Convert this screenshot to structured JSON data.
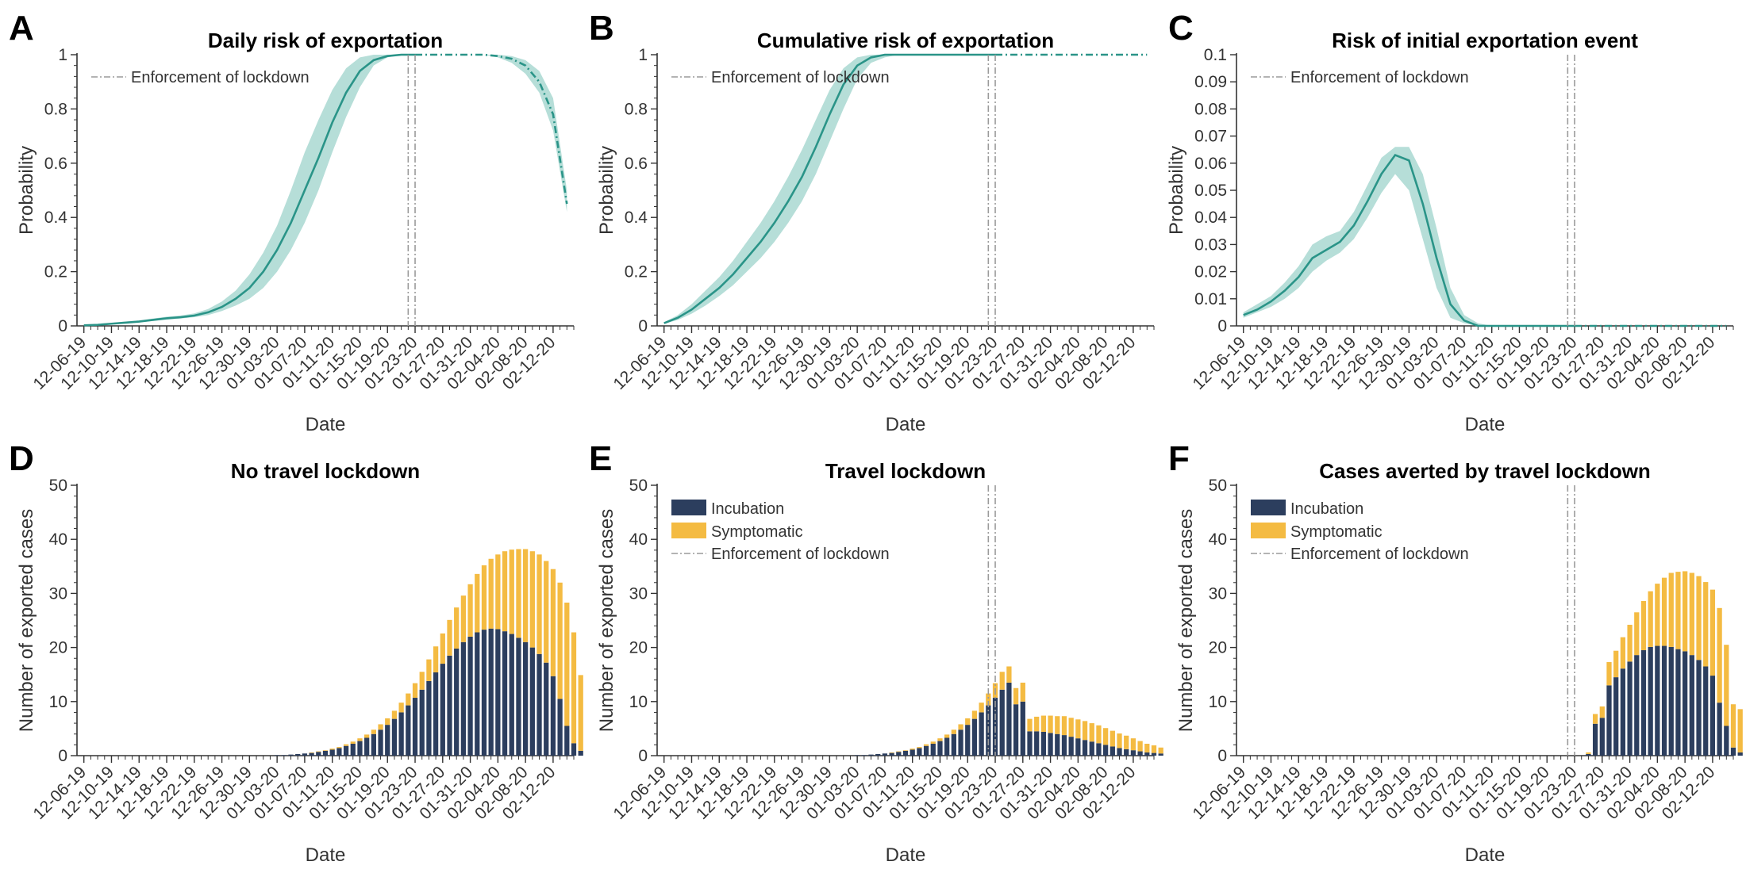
{
  "colors": {
    "teal": "#2a9488",
    "teal_band": "#b2dcd6",
    "incubation": "#2c3e5e",
    "symptomatic": "#f4bb42",
    "lockdown": "#9a9a9a"
  },
  "x_tick_labels": [
    "12-06-19",
    "12-10-19",
    "12-14-19",
    "12-18-19",
    "12-22-19",
    "12-26-19",
    "12-30-19",
    "01-03-20",
    "01-07-20",
    "01-11-20",
    "01-15-20",
    "01-19-20",
    "01-23-20",
    "01-27-20",
    "01-31-20",
    "02-04-20",
    "02-08-20",
    "02-12-20"
  ],
  "chart_data": [
    {
      "panel": "A",
      "type": "line",
      "title": "Daily risk of exportation",
      "xlabel": "Date",
      "ylabel": "Probability",
      "ylim": [
        0,
        1
      ],
      "yticks": [
        "0",
        "0.2",
        "0.4",
        "0.6",
        "0.8",
        "1"
      ],
      "legend": [
        "Enforcement of lockdown"
      ],
      "legend_position": "top-left",
      "lockdown_dates": [
        "01-22-20",
        "01-23-20"
      ],
      "x": [
        "12-06-19",
        "12-08-19",
        "12-10-19",
        "12-12-19",
        "12-14-19",
        "12-16-19",
        "12-18-19",
        "12-20-19",
        "12-22-19",
        "12-24-19",
        "12-26-19",
        "12-28-19",
        "12-30-19",
        "01-01-20",
        "01-03-20",
        "01-05-20",
        "01-07-20",
        "01-09-20",
        "01-11-20",
        "01-13-20",
        "01-15-20",
        "01-17-20",
        "01-19-20",
        "01-21-20",
        "01-23-20",
        "01-25-20",
        "01-27-20",
        "01-29-20",
        "01-31-20",
        "02-02-20",
        "02-04-20",
        "02-06-20",
        "02-08-20",
        "02-10-20",
        "02-12-20",
        "02-14-20"
      ],
      "series": [
        {
          "values": [
            0.002,
            0.004,
            0.008,
            0.012,
            0.016,
            0.022,
            0.028,
            0.032,
            0.038,
            0.05,
            0.07,
            0.1,
            0.14,
            0.2,
            0.28,
            0.38,
            0.5,
            0.62,
            0.75,
            0.86,
            0.94,
            0.98,
            0.995,
            1,
            1,
            1,
            1,
            1,
            1,
            1,
            0.995,
            0.985,
            0.96,
            0.9,
            0.78,
            0.45
          ],
          "lower": [
            0.001,
            0.003,
            0.006,
            0.009,
            0.013,
            0.018,
            0.023,
            0.027,
            0.032,
            0.04,
            0.055,
            0.075,
            0.1,
            0.14,
            0.2,
            0.28,
            0.38,
            0.5,
            0.64,
            0.77,
            0.88,
            0.96,
            0.99,
            1,
            1,
            1,
            1,
            1,
            1,
            1,
            0.99,
            0.97,
            0.93,
            0.86,
            0.72,
            0.42
          ],
          "upper": [
            0.003,
            0.006,
            0.011,
            0.016,
            0.02,
            0.027,
            0.034,
            0.038,
            0.046,
            0.062,
            0.09,
            0.13,
            0.19,
            0.27,
            0.37,
            0.5,
            0.64,
            0.76,
            0.87,
            0.95,
            0.99,
            1,
            1,
            1,
            1,
            1,
            1,
            1,
            1,
            1,
            1,
            0.995,
            0.98,
            0.94,
            0.84,
            0.5
          ]
        }
      ]
    },
    {
      "panel": "B",
      "type": "line",
      "title": "Cumulative risk of exportation",
      "xlabel": "Date",
      "ylabel": "Probability",
      "ylim": [
        0,
        1
      ],
      "yticks": [
        "0",
        "0.2",
        "0.4",
        "0.6",
        "0.8",
        "1"
      ],
      "legend": [
        "Enforcement of lockdown"
      ],
      "legend_position": "top-left",
      "lockdown_dates": [
        "01-22-20",
        "01-23-20"
      ],
      "x": [
        "12-06-19",
        "12-08-19",
        "12-10-19",
        "12-12-19",
        "12-14-19",
        "12-16-19",
        "12-18-19",
        "12-20-19",
        "12-22-19",
        "12-24-19",
        "12-26-19",
        "12-28-19",
        "12-30-19",
        "01-01-20",
        "01-03-20",
        "01-05-20",
        "01-07-20",
        "01-09-20",
        "01-11-20",
        "01-13-20",
        "01-15-20",
        "01-17-20",
        "01-19-20",
        "01-21-20",
        "01-23-20",
        "01-25-20",
        "01-27-20",
        "01-29-20",
        "01-31-20",
        "02-02-20",
        "02-04-20",
        "02-06-20",
        "02-08-20",
        "02-10-20",
        "02-12-20",
        "02-14-20"
      ],
      "series": [
        {
          "values": [
            0.01,
            0.03,
            0.06,
            0.1,
            0.14,
            0.19,
            0.25,
            0.31,
            0.38,
            0.46,
            0.55,
            0.66,
            0.78,
            0.89,
            0.96,
            0.99,
            1,
            1,
            1,
            1,
            1,
            1,
            1,
            1,
            1,
            1,
            1,
            1,
            1,
            1,
            1,
            1,
            1,
            1,
            1,
            1
          ],
          "lower": [
            0.008,
            0.022,
            0.045,
            0.075,
            0.11,
            0.15,
            0.2,
            0.25,
            0.31,
            0.38,
            0.46,
            0.56,
            0.68,
            0.8,
            0.91,
            0.97,
            0.99,
            1,
            1,
            1,
            1,
            1,
            1,
            1,
            1,
            1,
            1,
            1,
            1,
            1,
            1,
            1,
            1,
            1,
            1,
            1
          ],
          "upper": [
            0.013,
            0.04,
            0.08,
            0.13,
            0.18,
            0.24,
            0.31,
            0.38,
            0.46,
            0.55,
            0.65,
            0.76,
            0.87,
            0.95,
            0.99,
            1,
            1,
            1,
            1,
            1,
            1,
            1,
            1,
            1,
            1,
            1,
            1,
            1,
            1,
            1,
            1,
            1,
            1,
            1,
            1,
            1
          ]
        }
      ]
    },
    {
      "panel": "C",
      "type": "line",
      "title": "Risk of initial exportation event",
      "xlabel": "Date",
      "ylabel": "Probability",
      "ylim": [
        0,
        0.1
      ],
      "yticks": [
        "0",
        "0.01",
        "0.02",
        "0.03",
        "0.04",
        "0.05",
        "0.06",
        "0.07",
        "0.08",
        "0.09",
        "0.1"
      ],
      "legend": [
        "Enforcement of lockdown"
      ],
      "legend_position": "top-left",
      "lockdown_dates": [
        "01-22-20",
        "01-23-20"
      ],
      "x": [
        "12-06-19",
        "12-08-19",
        "12-10-19",
        "12-12-19",
        "12-14-19",
        "12-16-19",
        "12-18-19",
        "12-20-19",
        "12-22-19",
        "12-24-19",
        "12-26-19",
        "12-28-19",
        "12-30-19",
        "01-01-20",
        "01-03-20",
        "01-05-20",
        "01-07-20",
        "01-09-20",
        "01-11-20",
        "01-13-20",
        "01-15-20",
        "01-17-20",
        "01-19-20",
        "01-21-20",
        "01-23-20",
        "01-25-20",
        "01-27-20",
        "01-29-20",
        "01-31-20",
        "02-02-20",
        "02-04-20",
        "02-06-20",
        "02-08-20",
        "02-10-20",
        "02-12-20",
        "02-14-20"
      ],
      "series": [
        {
          "values": [
            0.004,
            0.006,
            0.009,
            0.013,
            0.018,
            0.025,
            0.028,
            0.031,
            0.037,
            0.046,
            0.056,
            0.063,
            0.061,
            0.045,
            0.025,
            0.008,
            0.002,
            0,
            0,
            0,
            0,
            0,
            0,
            0,
            0,
            0,
            0,
            0,
            0,
            0,
            0,
            0,
            0,
            0,
            0,
            0
          ],
          "lower": [
            0.003,
            0.005,
            0.007,
            0.01,
            0.014,
            0.02,
            0.024,
            0.027,
            0.032,
            0.04,
            0.049,
            0.056,
            0.05,
            0.032,
            0.014,
            0.003,
            0.001,
            0,
            0,
            0,
            0,
            0,
            0,
            0,
            0,
            0,
            0,
            0,
            0,
            0,
            0,
            0,
            0,
            0,
            0,
            0
          ],
          "upper": [
            0.005,
            0.008,
            0.011,
            0.016,
            0.022,
            0.03,
            0.033,
            0.035,
            0.042,
            0.052,
            0.062,
            0.066,
            0.066,
            0.056,
            0.036,
            0.014,
            0.004,
            0.001,
            0,
            0,
            0,
            0,
            0,
            0,
            0,
            0,
            0,
            0,
            0,
            0,
            0,
            0,
            0,
            0,
            0,
            0
          ]
        }
      ]
    },
    {
      "panel": "D",
      "type": "bar",
      "stacked": true,
      "title": "No travel lockdown",
      "xlabel": "Date",
      "ylabel": "Number of exported cases",
      "ylim": [
        0,
        50
      ],
      "yticks": [
        "0",
        "10",
        "20",
        "30",
        "40",
        "50"
      ],
      "categories_start": "12-06-19",
      "categories_end": "02-15-20",
      "series": [
        {
          "name": "Incubation",
          "values": [
            0,
            0,
            0,
            0,
            0,
            0,
            0,
            0,
            0,
            0,
            0,
            0,
            0,
            0,
            0,
            0,
            0,
            0,
            0,
            0,
            0,
            0,
            0,
            0,
            0,
            0,
            0,
            0,
            0.1,
            0.1,
            0.2,
            0.3,
            0.4,
            0.5,
            0.7,
            0.9,
            1.1,
            1.4,
            1.8,
            2.2,
            2.7,
            3.3,
            4,
            4.8,
            5.7,
            6.8,
            8,
            9.3,
            10.7,
            12.2,
            13.8,
            15.4,
            17,
            18.5,
            19.8,
            21,
            22,
            22.8,
            23.3,
            23.5,
            23.4,
            23,
            22.5,
            21.8,
            21,
            20,
            18.8,
            17.2,
            14.7,
            10.5,
            5.5,
            2.3,
            0.9
          ]
        },
        {
          "name": "Symptomatic",
          "values": [
            0,
            0,
            0,
            0,
            0,
            0,
            0,
            0,
            0,
            0,
            0,
            0,
            0,
            0,
            0,
            0,
            0,
            0,
            0,
            0,
            0,
            0,
            0,
            0,
            0,
            0,
            0,
            0,
            0,
            0,
            0,
            0,
            0,
            0.1,
            0.1,
            0.1,
            0.2,
            0.2,
            0.3,
            0.4,
            0.5,
            0.6,
            0.8,
            1,
            1.2,
            1.5,
            1.8,
            2.2,
            2.7,
            3.3,
            4,
            4.8,
            5.6,
            6.6,
            7.6,
            8.6,
            9.7,
            10.8,
            11.9,
            12.9,
            13.8,
            14.8,
            15.6,
            16.4,
            17.2,
            17.8,
            18.4,
            18.8,
            19.8,
            21.5,
            22.8,
            20.5,
            14
          ]
        }
      ]
    },
    {
      "panel": "E",
      "type": "bar",
      "stacked": true,
      "title": "Travel lockdown",
      "xlabel": "Date",
      "ylabel": "Number of exported cases",
      "ylim": [
        0,
        50
      ],
      "yticks": [
        "0",
        "10",
        "20",
        "30",
        "40",
        "50"
      ],
      "legend": [
        "Incubation",
        "Symptomatic",
        "Enforcement of lockdown"
      ],
      "legend_position": "top-left",
      "lockdown_dates": [
        "01-22-20",
        "01-23-20"
      ],
      "categories_start": "12-06-19",
      "categories_end": "02-15-20",
      "series": [
        {
          "name": "Incubation",
          "values": [
            0,
            0,
            0,
            0,
            0,
            0,
            0,
            0,
            0,
            0,
            0,
            0,
            0,
            0,
            0,
            0,
            0,
            0,
            0,
            0,
            0,
            0,
            0,
            0,
            0,
            0,
            0,
            0,
            0.1,
            0.1,
            0.2,
            0.3,
            0.4,
            0.5,
            0.7,
            0.9,
            1.1,
            1.4,
            1.8,
            2.2,
            2.7,
            3.3,
            4,
            4.8,
            5.7,
            6.8,
            8,
            9.3,
            10.7,
            12.2,
            13.5,
            9.5,
            10,
            4.5,
            4.5,
            4.4,
            4.2,
            4,
            3.8,
            3.5,
            3.2,
            2.9,
            2.6,
            2.3,
            2,
            1.7,
            1.4,
            1.2,
            1,
            0.8,
            0.6,
            0.5,
            0.4
          ]
        },
        {
          "name": "Symptomatic",
          "values": [
            0,
            0,
            0,
            0,
            0,
            0,
            0,
            0,
            0,
            0,
            0,
            0,
            0,
            0,
            0,
            0,
            0,
            0,
            0,
            0,
            0,
            0,
            0,
            0,
            0,
            0,
            0,
            0,
            0,
            0,
            0,
            0,
            0,
            0.1,
            0.1,
            0.1,
            0.2,
            0.2,
            0.3,
            0.4,
            0.5,
            0.6,
            0.8,
            1,
            1.2,
            1.5,
            1.8,
            2.2,
            2.7,
            3.3,
            3,
            3,
            3.5,
            2.3,
            2.7,
            3,
            3.2,
            3.3,
            3.5,
            3.5,
            3.5,
            3.5,
            3.4,
            3.3,
            3.1,
            2.9,
            2.7,
            2.5,
            2.2,
            1.9,
            1.6,
            1.4,
            1.1
          ]
        }
      ]
    },
    {
      "panel": "F",
      "type": "bar",
      "stacked": true,
      "title": "Cases averted by travel lockdown",
      "xlabel": "Date",
      "ylabel": "Number of exported cases",
      "ylim": [
        0,
        50
      ],
      "yticks": [
        "0",
        "10",
        "20",
        "30",
        "40",
        "50"
      ],
      "legend": [
        "Incubation",
        "Symptomatic",
        "Enforcement of lockdown"
      ],
      "legend_position": "top-left",
      "lockdown_dates": [
        "01-22-20",
        "01-23-20"
      ],
      "categories_start": "12-06-19",
      "categories_end": "02-15-20",
      "series": [
        {
          "name": "Incubation",
          "values": [
            0,
            0,
            0,
            0,
            0,
            0,
            0,
            0,
            0,
            0,
            0,
            0,
            0,
            0,
            0,
            0,
            0,
            0,
            0,
            0,
            0,
            0,
            0,
            0,
            0,
            0,
            0,
            0,
            0,
            0,
            0,
            0,
            0,
            0,
            0,
            0,
            0,
            0,
            0,
            0,
            0,
            0,
            0,
            0,
            0,
            0,
            0,
            0,
            0,
            0,
            0.3,
            5.9,
            7,
            13,
            14.5,
            16.1,
            17.4,
            18.6,
            19.5,
            20.1,
            20.3,
            20.3,
            20.1,
            19.7,
            19.3,
            18.6,
            17.7,
            16.5,
            14.8,
            9.8,
            5.5,
            1.5,
            0.6
          ]
        },
        {
          "name": "Symptomatic",
          "values": [
            0,
            0,
            0,
            0,
            0,
            0,
            0,
            0,
            0,
            0,
            0,
            0,
            0,
            0,
            0,
            0,
            0,
            0,
            0,
            0,
            0,
            0,
            0,
            0,
            0,
            0,
            0,
            0,
            0,
            0,
            0,
            0,
            0,
            0,
            0,
            0,
            0,
            0,
            0,
            0,
            0,
            0,
            0,
            0,
            0,
            0,
            0,
            0,
            0,
            0,
            0.3,
            1.8,
            2.1,
            4.3,
            4.9,
            5.8,
            6.8,
            7.9,
            9.1,
            10.3,
            11.5,
            12.6,
            13.7,
            14.3,
            14.8,
            15.2,
            15.5,
            15.6,
            15.9,
            17.5,
            15,
            8,
            8
          ]
        }
      ]
    }
  ]
}
